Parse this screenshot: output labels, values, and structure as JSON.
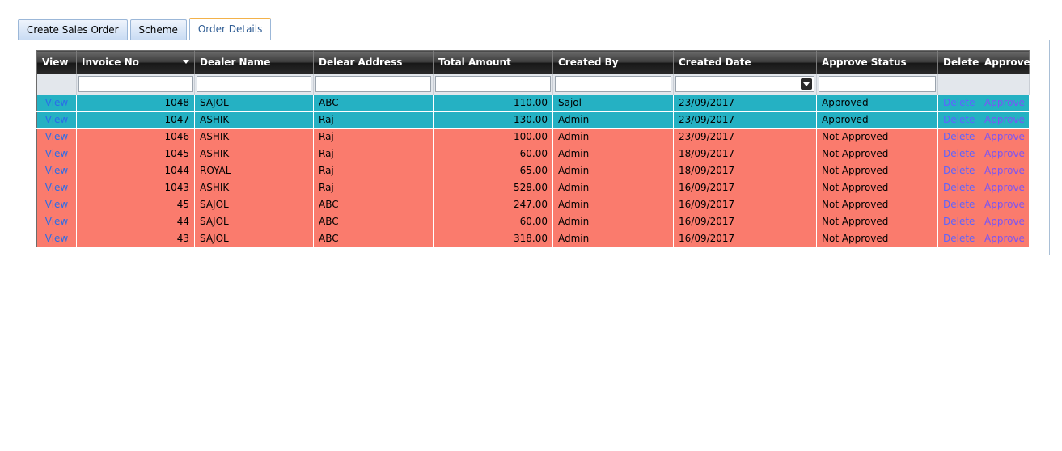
{
  "tabs": [
    {
      "label": "Create Sales Order",
      "active": false
    },
    {
      "label": "Scheme",
      "active": false
    },
    {
      "label": "Order Details",
      "active": true
    }
  ],
  "columns": [
    "View",
    "Invoice No",
    "Dealer Name",
    "Delear Address",
    "Total Amount",
    "Created By",
    "Created Date",
    "Approve Status",
    "Delete",
    "Approve"
  ],
  "row_colors": {
    "approved": "#25b1c3",
    "not_approved": "#fa7b6d"
  },
  "rows": [
    {
      "view": "View",
      "invoice": "1048",
      "dealer": "SAJOL",
      "address": "ABC",
      "amount": "110.00",
      "created_by": "Sajol",
      "date": "23/09/2017",
      "status": "Approved",
      "delete": "Delete",
      "approve": "Approve"
    },
    {
      "view": "View",
      "invoice": "1047",
      "dealer": "ASHIK",
      "address": "Raj",
      "amount": "130.00",
      "created_by": "Admin",
      "date": "23/09/2017",
      "status": "Approved",
      "delete": "Delete",
      "approve": "Approve"
    },
    {
      "view": "View",
      "invoice": "1046",
      "dealer": "ASHIK",
      "address": "Raj",
      "amount": "100.00",
      "created_by": "Admin",
      "date": "23/09/2017",
      "status": "Not Approved",
      "delete": "Delete",
      "approve": "Approve"
    },
    {
      "view": "View",
      "invoice": "1045",
      "dealer": "ASHIK",
      "address": "Raj",
      "amount": "60.00",
      "created_by": "Admin",
      "date": "18/09/2017",
      "status": "Not Approved",
      "delete": "Delete",
      "approve": "Approve"
    },
    {
      "view": "View",
      "invoice": "1044",
      "dealer": "ROYAL",
      "address": "Raj",
      "amount": "65.00",
      "created_by": "Admin",
      "date": "18/09/2017",
      "status": "Not Approved",
      "delete": "Delete",
      "approve": "Approve"
    },
    {
      "view": "View",
      "invoice": "1043",
      "dealer": "ASHIK",
      "address": "Raj",
      "amount": "528.00",
      "created_by": "Admin",
      "date": "16/09/2017",
      "status": "Not Approved",
      "delete": "Delete",
      "approve": "Approve"
    },
    {
      "view": "View",
      "invoice": "45",
      "dealer": "SAJOL",
      "address": "ABC",
      "amount": "247.00",
      "created_by": "Admin",
      "date": "16/09/2017",
      "status": "Not Approved",
      "delete": "Delete",
      "approve": "Approve"
    },
    {
      "view": "View",
      "invoice": "44",
      "dealer": "SAJOL",
      "address": "ABC",
      "amount": "60.00",
      "created_by": "Admin",
      "date": "16/09/2017",
      "status": "Not Approved",
      "delete": "Delete",
      "approve": "Approve"
    },
    {
      "view": "View",
      "invoice": "43",
      "dealer": "SAJOL",
      "address": "ABC",
      "amount": "318.00",
      "created_by": "Admin",
      "date": "16/09/2017",
      "status": "Not Approved",
      "delete": "Delete",
      "approve": "Approve"
    }
  ]
}
